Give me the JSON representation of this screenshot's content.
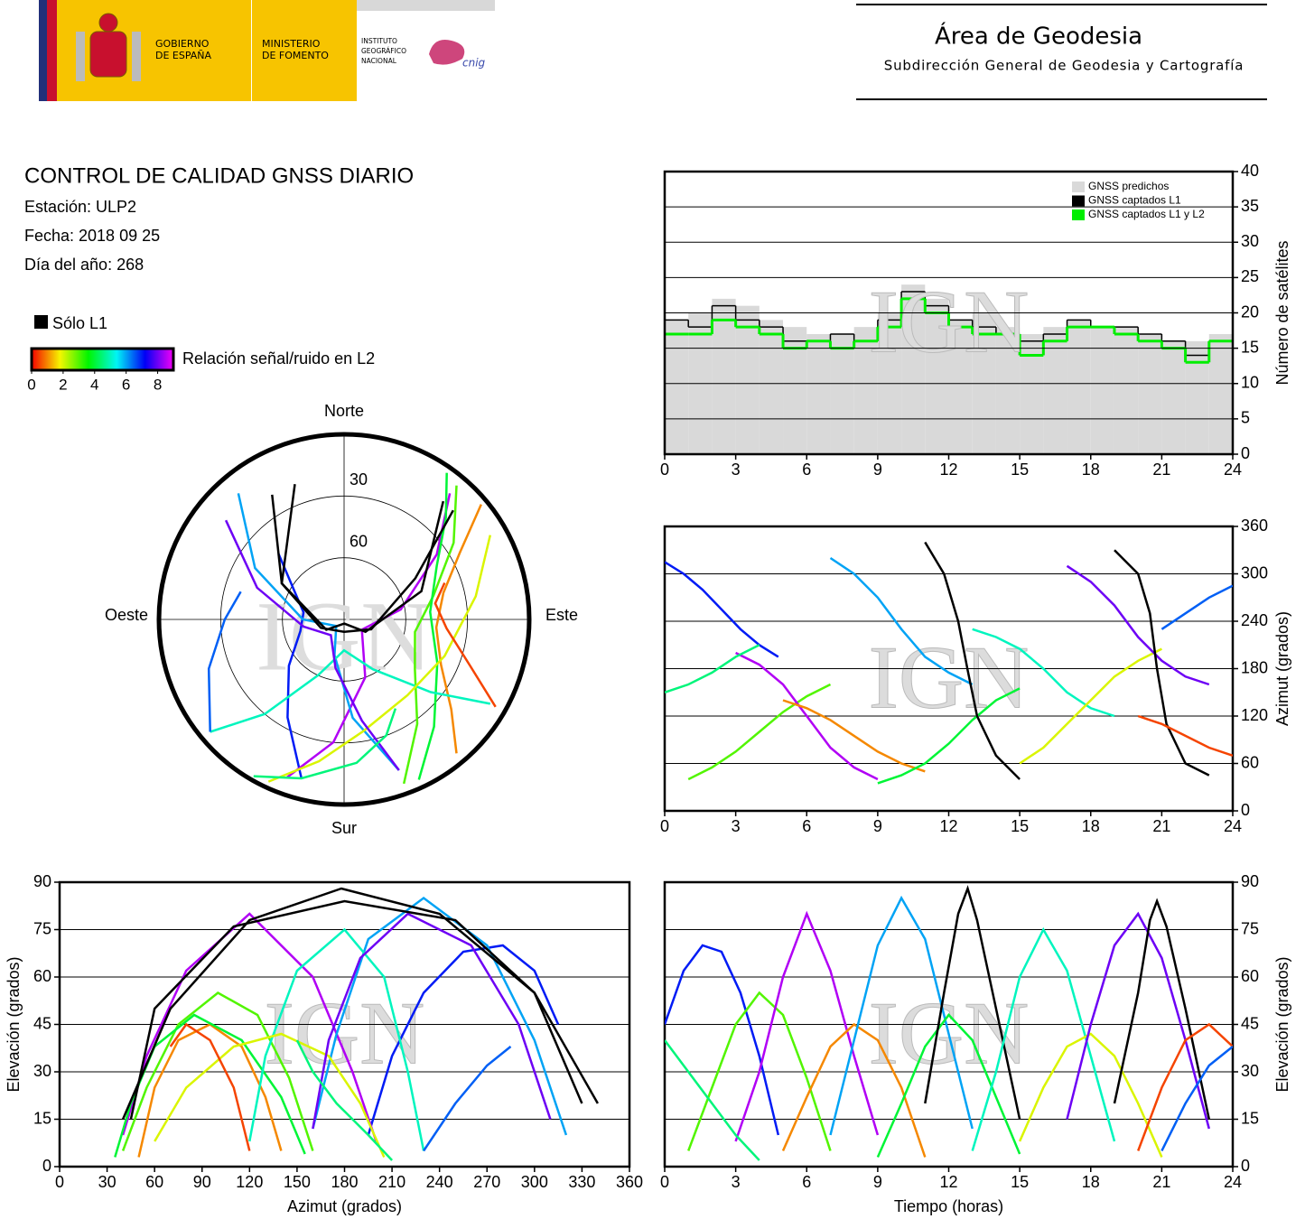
{
  "header": {
    "gov": [
      "GOBIERNO",
      "DE ESPAÑA"
    ],
    "ministry": [
      "MINISTERIO",
      "DE FOMENTO"
    ],
    "institute": [
      "INSTITUTO",
      "GEOGRÁFICO",
      "NACIONAL"
    ],
    "cnig": "cnig",
    "title": "Área de Geodesia",
    "subtitle": "Subdirección General de Geodesia y Cartografía"
  },
  "report": {
    "title": "CONTROL DE CALIDAD GNSS DIARIO",
    "station": "Estación: ULP2",
    "date": "Fecha: 2018 09 25",
    "doy": "Día del año: 268"
  },
  "legend": {
    "l1_only": "Sólo L1",
    "snr_title": "Relación señal/ruido en L2",
    "snr_lim": [
      0,
      9
    ],
    "snr_ticks": [
      0,
      2,
      4,
      6,
      8
    ]
  },
  "watermark": "IGN",
  "passes": [
    {
      "time": [
        0,
        0.8,
        1.6,
        2.4,
        3.2,
        4,
        4.8
      ],
      "azimuth": [
        315,
        300,
        280,
        255,
        230,
        210,
        195
      ],
      "elevation": [
        45,
        62,
        70,
        68,
        55,
        35,
        10
      ],
      "snr": 7
    },
    {
      "time": [
        1,
        2,
        3,
        4,
        5,
        6,
        7
      ],
      "azimuth": [
        40,
        55,
        75,
        100,
        125,
        145,
        160
      ],
      "elevation": [
        5,
        25,
        45,
        55,
        48,
        28,
        5
      ],
      "snr": 3
    },
    {
      "time": [
        3,
        4,
        5,
        6,
        7,
        8,
        9
      ],
      "azimuth": [
        200,
        185,
        160,
        120,
        80,
        55,
        40
      ],
      "elevation": [
        8,
        30,
        60,
        80,
        62,
        35,
        10
      ],
      "snr": 8.5
    },
    {
      "time": [
        5,
        6,
        7,
        8,
        9,
        10,
        11
      ],
      "azimuth": [
        140,
        130,
        115,
        95,
        75,
        60,
        50
      ],
      "elevation": [
        5,
        22,
        38,
        45,
        40,
        25,
        3
      ],
      "snr": 1
    },
    {
      "time": [
        7,
        8,
        9,
        10,
        11,
        12,
        13
      ],
      "azimuth": [
        320,
        300,
        270,
        230,
        195,
        175,
        160
      ],
      "elevation": [
        10,
        40,
        70,
        85,
        72,
        42,
        12
      ],
      "snr": 6
    },
    {
      "time": [
        9,
        10,
        11,
        12,
        13,
        14,
        15
      ],
      "azimuth": [
        35,
        45,
        60,
        85,
        115,
        140,
        155
      ],
      "elevation": [
        3,
        20,
        38,
        48,
        40,
        22,
        4
      ],
      "snr": 4
    },
    {
      "time": [
        11,
        11.8,
        12.4,
        12.8,
        13.2,
        14,
        15
      ],
      "azimuth": [
        340,
        300,
        240,
        178,
        120,
        70,
        40
      ],
      "elevation": [
        20,
        55,
        80,
        88,
        78,
        50,
        15
      ],
      "snr": null
    },
    {
      "time": [
        13,
        14,
        15,
        16,
        17,
        18,
        19
      ],
      "azimuth": [
        230,
        220,
        205,
        180,
        150,
        130,
        120
      ],
      "elevation": [
        5,
        30,
        60,
        75,
        62,
        35,
        8
      ],
      "snr": 5
    },
    {
      "time": [
        15,
        16,
        17,
        18,
        19,
        20,
        21
      ],
      "azimuth": [
        60,
        80,
        110,
        140,
        170,
        190,
        205
      ],
      "elevation": [
        8,
        25,
        38,
        42,
        35,
        20,
        3
      ],
      "snr": 2
    },
    {
      "time": [
        17,
        18,
        19,
        20,
        21,
        22,
        23
      ],
      "azimuth": [
        310,
        290,
        260,
        220,
        190,
        170,
        160
      ],
      "elevation": [
        15,
        45,
        70,
        80,
        66,
        40,
        12
      ],
      "snr": 8
    },
    {
      "time": [
        19,
        20,
        20.5,
        20.8,
        21.2,
        22,
        23
      ],
      "azimuth": [
        330,
        300,
        250,
        180,
        110,
        60,
        45
      ],
      "elevation": [
        20,
        55,
        78,
        84,
        76,
        50,
        15
      ],
      "snr": null
    },
    {
      "time": [
        20,
        21,
        22,
        23,
        24
      ],
      "azimuth": [
        120,
        110,
        95,
        80,
        70
      ],
      "elevation": [
        5,
        25,
        40,
        45,
        38
      ],
      "snr": 0.5
    },
    {
      "time": [
        0,
        1,
        2,
        3,
        4
      ],
      "azimuth": [
        150,
        160,
        175,
        195,
        210
      ],
      "elevation": [
        40,
        30,
        20,
        10,
        2
      ],
      "snr": 4.5
    },
    {
      "time": [
        21,
        22,
        23,
        24
      ],
      "azimuth": [
        230,
        250,
        270,
        285
      ],
      "elevation": [
        5,
        20,
        32,
        38
      ],
      "snr": 6.5
    }
  ],
  "chart_data": [
    {
      "type": "skyplot",
      "north": "Norte",
      "south": "Sur",
      "east": "Este",
      "west": "Oeste",
      "rlim": [
        90,
        0
      ],
      "rticks": [
        30,
        60
      ]
    },
    {
      "type": "line",
      "ylabel": "Número de satélites",
      "x": [
        0,
        1,
        2,
        3,
        4,
        5,
        6,
        7,
        8,
        9,
        10,
        11,
        12,
        13,
        14,
        15,
        16,
        17,
        18,
        19,
        20,
        21,
        22,
        23
      ],
      "series": [
        {
          "name": "GNSS predichos",
          "color": "#d9d9d9",
          "values": [
            19,
            20,
            22,
            21,
            19,
            18,
            17,
            17,
            18,
            20,
            24,
            22,
            19,
            20,
            18,
            17,
            18,
            19,
            18,
            18,
            17,
            16,
            16,
            17
          ]
        },
        {
          "name": "GNSS captados L1",
          "color": "#000000",
          "values": [
            19,
            18,
            21,
            19,
            18,
            16,
            16,
            17,
            16,
            19,
            23,
            21,
            19,
            18,
            17,
            16,
            17,
            19,
            18,
            18,
            17,
            16,
            14,
            16
          ]
        },
        {
          "name": "GNSS captados L1 y L2",
          "color": "#00ee00",
          "values": [
            17,
            17,
            19,
            18,
            17,
            15,
            16,
            15,
            16,
            18,
            22,
            20,
            18,
            17,
            17,
            14,
            16,
            18,
            18,
            17,
            16,
            15,
            13,
            16
          ]
        }
      ],
      "xlim": [
        0,
        24
      ],
      "xticks": [
        0,
        3,
        6,
        9,
        12,
        15,
        18,
        21,
        24
      ],
      "ylim": [
        0,
        40
      ],
      "yticks": [
        0,
        5,
        10,
        15,
        20,
        25,
        30,
        35,
        40
      ],
      "grid": true,
      "legend": "upper right"
    },
    {
      "type": "scatter",
      "ylabel": "Azimut (grados)",
      "xlim": [
        0,
        24
      ],
      "xticks": [
        0,
        3,
        6,
        9,
        12,
        15,
        18,
        21,
        24
      ],
      "ylim": [
        0,
        360
      ],
      "yticks": [
        0,
        60,
        120,
        180,
        240,
        300,
        360
      ],
      "grid": true
    },
    {
      "type": "scatter",
      "xlabel": "Azimut (grados)",
      "ylabel": "Elevación (grados)",
      "xlim": [
        0,
        360
      ],
      "xticks": [
        0,
        30,
        60,
        90,
        120,
        150,
        180,
        210,
        240,
        270,
        300,
        330,
        360
      ],
      "ylim": [
        0,
        90
      ],
      "yticks": [
        0,
        15,
        30,
        45,
        60,
        75,
        90
      ],
      "grid": true
    },
    {
      "type": "scatter",
      "xlabel": "Tiempo (horas)",
      "ylabel": "Elevación (grados)",
      "xlim": [
        0,
        24
      ],
      "xticks": [
        0,
        3,
        6,
        9,
        12,
        15,
        18,
        21,
        24
      ],
      "ylim": [
        0,
        90
      ],
      "yticks": [
        0,
        15,
        30,
        45,
        60,
        75,
        90
      ],
      "grid": true
    }
  ]
}
